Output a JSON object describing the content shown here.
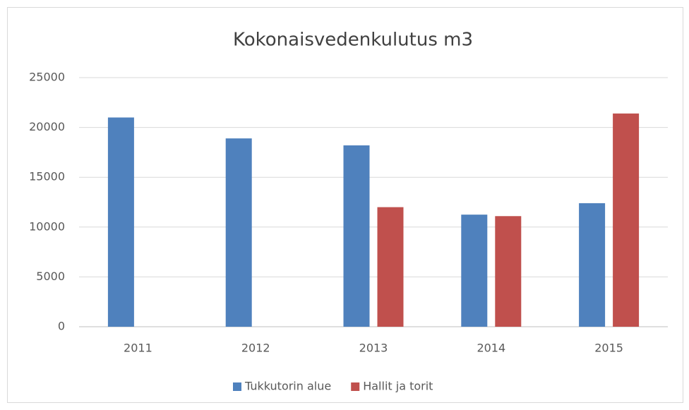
{
  "chart_data": {
    "type": "bar",
    "title": "Kokonaisvedenkulutus  m3",
    "categories": [
      "2011",
      "2012",
      "2013",
      "2014",
      "2015"
    ],
    "series": [
      {
        "name": "Tukkutorin alue",
        "color": "#4f81bd",
        "values": [
          21000,
          18900,
          18200,
          11250,
          12400
        ]
      },
      {
        "name": "Hallit ja torit",
        "color": "#c0504d",
        "values": [
          null,
          null,
          12000,
          11100,
          21400
        ]
      }
    ],
    "ylim": [
      0,
      25000
    ],
    "yticks": [
      0,
      5000,
      10000,
      15000,
      20000,
      25000
    ],
    "grid": true,
    "legend": "bottom"
  }
}
